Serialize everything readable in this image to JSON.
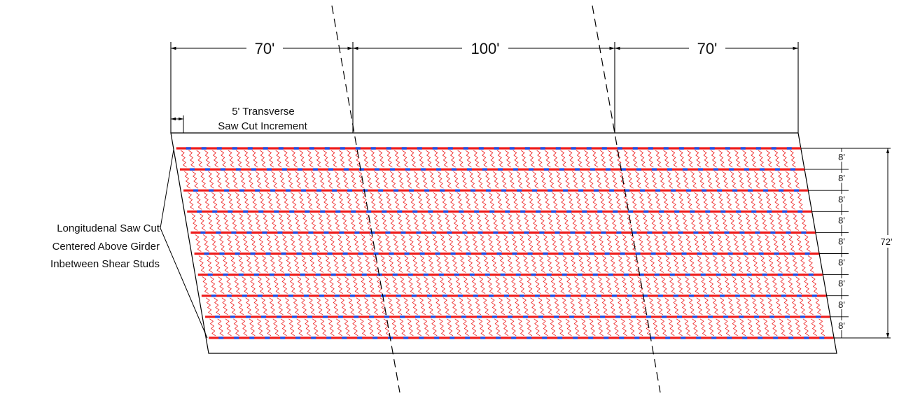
{
  "dimensions": {
    "span_left": "70'",
    "span_middle": "100'",
    "span_right": "70'",
    "total_width": "72'"
  },
  "notes": {
    "transverse_line1": "5' Transverse",
    "transverse_line2": "Saw Cut Increment",
    "longitudinal_line1": "Longitudenal Saw Cut",
    "longitudinal_line2": "Centered Above Girder",
    "longitudinal_line3": "Inbetween Shear Studs"
  },
  "girder_spacing_labels": [
    "8'",
    "8'",
    "8'",
    "8'",
    "8'",
    "8'",
    "8'",
    "8'",
    "8'"
  ],
  "colors": {
    "longitudinal_cut": "#ee1c1c",
    "shear_stud": "#1f4fe6",
    "transverse_cut": "#ee1c1c",
    "linework": "#000000"
  }
}
